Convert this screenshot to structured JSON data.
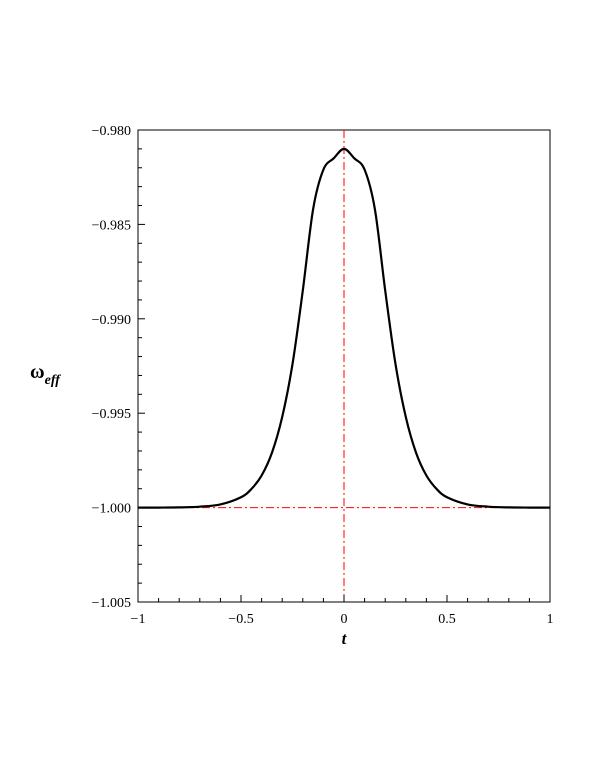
{
  "chart_data": {
    "type": "line",
    "title": "",
    "xlabel": "t",
    "ylabel": {
      "symbol": "ω",
      "subscript": "eff"
    },
    "xlim": [
      -1,
      1
    ],
    "ylim": [
      -1.005,
      -0.98
    ],
    "xticks": [
      -1,
      -0.5,
      0,
      0.5,
      1
    ],
    "xtick_labels": [
      "−1",
      "−0.5",
      "0",
      "0.5",
      "1"
    ],
    "yticks": [
      -0.98,
      -0.985,
      -0.99,
      -0.995,
      -1.0,
      -1.005
    ],
    "ytick_labels": [
      "−0.980",
      "−0.985",
      "−0.990",
      "−0.995",
      "−1.000",
      "−1.005"
    ],
    "grid": false,
    "legend": "none",
    "series": [
      {
        "color": "#000000",
        "style": "solid",
        "x": [
          -1,
          -0.9,
          -0.8,
          -0.7,
          -0.6,
          -0.5,
          -0.45,
          -0.4,
          -0.35,
          -0.3,
          -0.25,
          -0.2,
          -0.15,
          -0.1,
          -0.05,
          0,
          0.05,
          0.1,
          0.15,
          0.2,
          0.25,
          0.3,
          0.35,
          0.4,
          0.45,
          0.5,
          0.6,
          0.7,
          0.8,
          0.9,
          1
        ],
        "y": [
          -1.0,
          -1.0,
          -0.99999,
          -0.99995,
          -0.99983,
          -0.99945,
          -0.99902,
          -0.9983,
          -0.9971,
          -0.9952,
          -0.9924,
          -0.9885,
          -0.9842,
          -0.9821,
          -0.9815,
          -0.981,
          -0.9815,
          -0.9821,
          -0.9842,
          -0.9885,
          -0.9924,
          -0.9952,
          -0.9971,
          -0.9983,
          -0.99902,
          -0.99945,
          -0.99983,
          -0.99995,
          -0.99999,
          -1.0,
          -1.0
        ]
      }
    ],
    "reference_lines": [
      {
        "orientation": "vertical",
        "value": 0,
        "color": "#ff0000",
        "style": "dashdot"
      },
      {
        "orientation": "horizontal",
        "value": -1.0,
        "color": "#ff0000",
        "style": "dashdot"
      }
    ]
  }
}
